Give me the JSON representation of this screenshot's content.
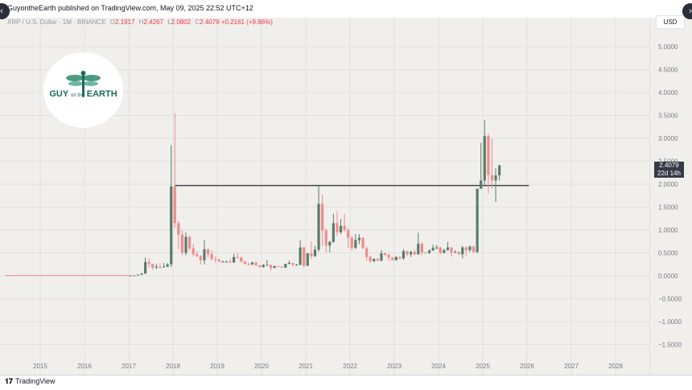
{
  "header": {
    "publish_text": "GuyontheEarth published on TradingView.com, May 09, 2025 22:52 UTC+12",
    "back_glyph": "‹",
    "forward_glyph": "›"
  },
  "legend": {
    "symbol": "XRP / U.S. Dollar · 1M · BINANCE",
    "open_label": "O",
    "open": "2.1917",
    "high_label": "H",
    "high": "2.4267",
    "low_label": "L",
    "low": "2.0802",
    "close_label": "C",
    "close": "2.4079",
    "change": "+0.2161 (+9.86%)"
  },
  "currency": "USD",
  "price_tag": {
    "price": "2.4079",
    "countdown": "22d 14h"
  },
  "logo": {
    "line1": "GUY",
    "line2": "on the",
    "line3": "EARTH"
  },
  "footer": {
    "brand": "TradingView",
    "brand_icon": "tradingview-logo-icon"
  },
  "colors": {
    "up": "#5b7b6d",
    "down": "#f08b8d",
    "background": "#f0efeb",
    "line": "#3b3f47"
  },
  "chart_data": {
    "type": "candlestick",
    "title": "",
    "x_ticks": [
      "2015",
      "2016",
      "2017",
      "2018",
      "2019",
      "2020",
      "2021",
      "2022",
      "2023",
      "2024",
      "2025",
      "2026",
      "2027",
      "2028"
    ],
    "y_ticks": [
      "5.0000",
      "4.5000",
      "4.0000",
      "3.5000",
      "3.0000",
      "2.5000",
      "2.0000",
      "1.5000",
      "1.0000",
      "0.5000",
      "0.0000",
      "−0.5000",
      "−1.0000",
      "−1.5000"
    ],
    "ylim": [
      -1.5,
      5.0
    ],
    "xlim": [
      2014.3,
      2028.6
    ],
    "horizontal_line": {
      "value": 1.97,
      "from": "2018-01",
      "to": "2026-01"
    },
    "candles": [
      {
        "t": "2017-01",
        "o": 0.006,
        "h": 0.008,
        "l": 0.005,
        "c": 0.007
      },
      {
        "t": "2017-02",
        "o": 0.007,
        "h": 0.009,
        "l": 0.006,
        "c": 0.008
      },
      {
        "t": "2017-03",
        "o": 0.008,
        "h": 0.03,
        "l": 0.006,
        "c": 0.025
      },
      {
        "t": "2017-04",
        "o": 0.025,
        "h": 0.06,
        "l": 0.02,
        "c": 0.05
      },
      {
        "t": "2017-05",
        "o": 0.05,
        "h": 0.4,
        "l": 0.04,
        "c": 0.3
      },
      {
        "t": "2017-06",
        "o": 0.3,
        "h": 0.38,
        "l": 0.18,
        "c": 0.26
      },
      {
        "t": "2017-07",
        "o": 0.26,
        "h": 0.27,
        "l": 0.13,
        "c": 0.18
      },
      {
        "t": "2017-08",
        "o": 0.18,
        "h": 0.26,
        "l": 0.15,
        "c": 0.2
      },
      {
        "t": "2017-09",
        "o": 0.2,
        "h": 0.27,
        "l": 0.15,
        "c": 0.19
      },
      {
        "t": "2017-10",
        "o": 0.19,
        "h": 0.28,
        "l": 0.18,
        "c": 0.2
      },
      {
        "t": "2017-11",
        "o": 0.2,
        "h": 0.28,
        "l": 0.19,
        "c": 0.25
      },
      {
        "t": "2017-12",
        "o": 0.25,
        "h": 2.85,
        "l": 0.19,
        "c": 1.95
      },
      {
        "t": "2018-01",
        "o": 1.95,
        "h": 3.55,
        "l": 1.05,
        "c": 1.15
      },
      {
        "t": "2018-02",
        "o": 1.15,
        "h": 1.2,
        "l": 0.58,
        "c": 0.9
      },
      {
        "t": "2018-03",
        "o": 0.9,
        "h": 1.0,
        "l": 0.45,
        "c": 0.5
      },
      {
        "t": "2018-04",
        "o": 0.5,
        "h": 0.95,
        "l": 0.45,
        "c": 0.85
      },
      {
        "t": "2018-05",
        "o": 0.85,
        "h": 0.88,
        "l": 0.55,
        "c": 0.6
      },
      {
        "t": "2018-06",
        "o": 0.6,
        "h": 0.7,
        "l": 0.42,
        "c": 0.47
      },
      {
        "t": "2018-07",
        "o": 0.47,
        "h": 0.54,
        "l": 0.41,
        "c": 0.43
      },
      {
        "t": "2018-08",
        "o": 0.43,
        "h": 0.45,
        "l": 0.25,
        "c": 0.34
      },
      {
        "t": "2018-09",
        "o": 0.34,
        "h": 0.78,
        "l": 0.25,
        "c": 0.58
      },
      {
        "t": "2018-10",
        "o": 0.58,
        "h": 0.6,
        "l": 0.4,
        "c": 0.47
      },
      {
        "t": "2018-11",
        "o": 0.47,
        "h": 0.56,
        "l": 0.34,
        "c": 0.36
      },
      {
        "t": "2018-12",
        "o": 0.36,
        "h": 0.42,
        "l": 0.28,
        "c": 0.35
      },
      {
        "t": "2019-01",
        "o": 0.35,
        "h": 0.38,
        "l": 0.3,
        "c": 0.31
      },
      {
        "t": "2019-02",
        "o": 0.31,
        "h": 0.33,
        "l": 0.29,
        "c": 0.31
      },
      {
        "t": "2019-03",
        "o": 0.31,
        "h": 0.33,
        "l": 0.3,
        "c": 0.31
      },
      {
        "t": "2019-04",
        "o": 0.31,
        "h": 0.38,
        "l": 0.28,
        "c": 0.29
      },
      {
        "t": "2019-05",
        "o": 0.29,
        "h": 0.48,
        "l": 0.28,
        "c": 0.41
      },
      {
        "t": "2019-06",
        "o": 0.41,
        "h": 0.5,
        "l": 0.38,
        "c": 0.4
      },
      {
        "t": "2019-07",
        "o": 0.4,
        "h": 0.41,
        "l": 0.29,
        "c": 0.31
      },
      {
        "t": "2019-08",
        "o": 0.31,
        "h": 0.33,
        "l": 0.25,
        "c": 0.26
      },
      {
        "t": "2019-09",
        "o": 0.26,
        "h": 0.3,
        "l": 0.22,
        "c": 0.25
      },
      {
        "t": "2019-10",
        "o": 0.25,
        "h": 0.31,
        "l": 0.23,
        "c": 0.29
      },
      {
        "t": "2019-11",
        "o": 0.29,
        "h": 0.31,
        "l": 0.21,
        "c": 0.23
      },
      {
        "t": "2019-12",
        "o": 0.23,
        "h": 0.23,
        "l": 0.18,
        "c": 0.19
      },
      {
        "t": "2020-01",
        "o": 0.19,
        "h": 0.25,
        "l": 0.18,
        "c": 0.24
      },
      {
        "t": "2020-02",
        "o": 0.24,
        "h": 0.35,
        "l": 0.23,
        "c": 0.24
      },
      {
        "t": "2020-03",
        "o": 0.24,
        "h": 0.24,
        "l": 0.11,
        "c": 0.17
      },
      {
        "t": "2020-04",
        "o": 0.17,
        "h": 0.23,
        "l": 0.17,
        "c": 0.21
      },
      {
        "t": "2020-05",
        "o": 0.21,
        "h": 0.22,
        "l": 0.19,
        "c": 0.2
      },
      {
        "t": "2020-06",
        "o": 0.2,
        "h": 0.21,
        "l": 0.17,
        "c": 0.18
      },
      {
        "t": "2020-07",
        "o": 0.18,
        "h": 0.26,
        "l": 0.17,
        "c": 0.26
      },
      {
        "t": "2020-08",
        "o": 0.26,
        "h": 0.33,
        "l": 0.25,
        "c": 0.28
      },
      {
        "t": "2020-09",
        "o": 0.28,
        "h": 0.28,
        "l": 0.21,
        "c": 0.24
      },
      {
        "t": "2020-10",
        "o": 0.24,
        "h": 0.26,
        "l": 0.23,
        "c": 0.24
      },
      {
        "t": "2020-11",
        "o": 0.24,
        "h": 0.78,
        "l": 0.23,
        "c": 0.62
      },
      {
        "t": "2020-12",
        "o": 0.62,
        "h": 0.63,
        "l": 0.18,
        "c": 0.22
      },
      {
        "t": "2021-01",
        "o": 0.22,
        "h": 0.5,
        "l": 0.21,
        "c": 0.49
      },
      {
        "t": "2021-02",
        "o": 0.49,
        "h": 0.75,
        "l": 0.37,
        "c": 0.43
      },
      {
        "t": "2021-03",
        "o": 0.43,
        "h": 0.65,
        "l": 0.41,
        "c": 0.57
      },
      {
        "t": "2021-04",
        "o": 0.57,
        "h": 1.96,
        "l": 0.53,
        "c": 1.57
      },
      {
        "t": "2021-05",
        "o": 1.57,
        "h": 1.77,
        "l": 0.65,
        "c": 0.99
      },
      {
        "t": "2021-06",
        "o": 0.99,
        "h": 1.03,
        "l": 0.51,
        "c": 0.66
      },
      {
        "t": "2021-07",
        "o": 0.66,
        "h": 0.76,
        "l": 0.51,
        "c": 0.74
      },
      {
        "t": "2021-08",
        "o": 0.74,
        "h": 1.35,
        "l": 0.72,
        "c": 1.15
      },
      {
        "t": "2021-09",
        "o": 1.15,
        "h": 1.41,
        "l": 0.87,
        "c": 0.95
      },
      {
        "t": "2021-10",
        "o": 0.95,
        "h": 1.24,
        "l": 0.91,
        "c": 1.09
      },
      {
        "t": "2021-11",
        "o": 1.09,
        "h": 1.35,
        "l": 0.97,
        "c": 1.0
      },
      {
        "t": "2021-12",
        "o": 1.0,
        "h": 1.04,
        "l": 0.61,
        "c": 0.83
      },
      {
        "t": "2022-01",
        "o": 0.83,
        "h": 0.88,
        "l": 0.55,
        "c": 0.61
      },
      {
        "t": "2022-02",
        "o": 0.61,
        "h": 0.91,
        "l": 0.58,
        "c": 0.78
      },
      {
        "t": "2022-03",
        "o": 0.78,
        "h": 0.91,
        "l": 0.69,
        "c": 0.83
      },
      {
        "t": "2022-04",
        "o": 0.83,
        "h": 0.84,
        "l": 0.59,
        "c": 0.6
      },
      {
        "t": "2022-05",
        "o": 0.6,
        "h": 0.64,
        "l": 0.33,
        "c": 0.41
      },
      {
        "t": "2022-06",
        "o": 0.41,
        "h": 0.44,
        "l": 0.29,
        "c": 0.32
      },
      {
        "t": "2022-07",
        "o": 0.32,
        "h": 0.38,
        "l": 0.3,
        "c": 0.37
      },
      {
        "t": "2022-08",
        "o": 0.37,
        "h": 0.39,
        "l": 0.32,
        "c": 0.33
      },
      {
        "t": "2022-09",
        "o": 0.33,
        "h": 0.56,
        "l": 0.32,
        "c": 0.49
      },
      {
        "t": "2022-10",
        "o": 0.49,
        "h": 0.51,
        "l": 0.43,
        "c": 0.46
      },
      {
        "t": "2022-11",
        "o": 0.46,
        "h": 0.48,
        "l": 0.33,
        "c": 0.4
      },
      {
        "t": "2022-12",
        "o": 0.4,
        "h": 0.41,
        "l": 0.34,
        "c": 0.34
      },
      {
        "t": "2023-01",
        "o": 0.34,
        "h": 0.43,
        "l": 0.34,
        "c": 0.41
      },
      {
        "t": "2023-02",
        "o": 0.41,
        "h": 0.43,
        "l": 0.36,
        "c": 0.38
      },
      {
        "t": "2023-03",
        "o": 0.38,
        "h": 0.58,
        "l": 0.35,
        "c": 0.54
      },
      {
        "t": "2023-04",
        "o": 0.54,
        "h": 0.55,
        "l": 0.43,
        "c": 0.47
      },
      {
        "t": "2023-05",
        "o": 0.47,
        "h": 0.55,
        "l": 0.41,
        "c": 0.52
      },
      {
        "t": "2023-06",
        "o": 0.52,
        "h": 0.57,
        "l": 0.45,
        "c": 0.47
      },
      {
        "t": "2023-07",
        "o": 0.47,
        "h": 0.94,
        "l": 0.46,
        "c": 0.7
      },
      {
        "t": "2023-08",
        "o": 0.7,
        "h": 0.73,
        "l": 0.45,
        "c": 0.51
      },
      {
        "t": "2023-09",
        "o": 0.51,
        "h": 0.52,
        "l": 0.48,
        "c": 0.5
      },
      {
        "t": "2023-10",
        "o": 0.5,
        "h": 0.58,
        "l": 0.48,
        "c": 0.55
      },
      {
        "t": "2023-11",
        "o": 0.55,
        "h": 0.68,
        "l": 0.55,
        "c": 0.61
      },
      {
        "t": "2023-12",
        "o": 0.61,
        "h": 0.67,
        "l": 0.58,
        "c": 0.62
      },
      {
        "t": "2024-01",
        "o": 0.62,
        "h": 0.63,
        "l": 0.47,
        "c": 0.5
      },
      {
        "t": "2024-02",
        "o": 0.5,
        "h": 0.59,
        "l": 0.49,
        "c": 0.56
      },
      {
        "t": "2024-03",
        "o": 0.56,
        "h": 0.74,
        "l": 0.55,
        "c": 0.62
      },
      {
        "t": "2024-04",
        "o": 0.62,
        "h": 0.63,
        "l": 0.42,
        "c": 0.51
      },
      {
        "t": "2024-05",
        "o": 0.51,
        "h": 0.56,
        "l": 0.5,
        "c": 0.52
      },
      {
        "t": "2024-06",
        "o": 0.52,
        "h": 0.53,
        "l": 0.46,
        "c": 0.47
      },
      {
        "t": "2024-07",
        "o": 0.47,
        "h": 0.65,
        "l": 0.38,
        "c": 0.62
      },
      {
        "t": "2024-08",
        "o": 0.62,
        "h": 0.64,
        "l": 0.43,
        "c": 0.56
      },
      {
        "t": "2024-09",
        "o": 0.56,
        "h": 0.66,
        "l": 0.52,
        "c": 0.64
      },
      {
        "t": "2024-10",
        "o": 0.64,
        "h": 0.65,
        "l": 0.49,
        "c": 0.52
      },
      {
        "t": "2024-11",
        "o": 0.52,
        "h": 1.9,
        "l": 0.49,
        "c": 1.9
      },
      {
        "t": "2024-12",
        "o": 1.9,
        "h": 2.9,
        "l": 1.9,
        "c": 2.08
      },
      {
        "t": "2025-01",
        "o": 2.08,
        "h": 3.4,
        "l": 1.95,
        "c": 3.05
      },
      {
        "t": "2025-02",
        "o": 3.05,
        "h": 3.1,
        "l": 1.8,
        "c": 2.2
      },
      {
        "t": "2025-03",
        "o": 2.2,
        "h": 3.0,
        "l": 1.9,
        "c": 2.08
      },
      {
        "t": "2025-04",
        "o": 2.08,
        "h": 2.35,
        "l": 1.61,
        "c": 2.19
      },
      {
        "t": "2025-05",
        "o": 2.1917,
        "h": 2.4267,
        "l": 2.0802,
        "c": 2.4079
      }
    ]
  }
}
